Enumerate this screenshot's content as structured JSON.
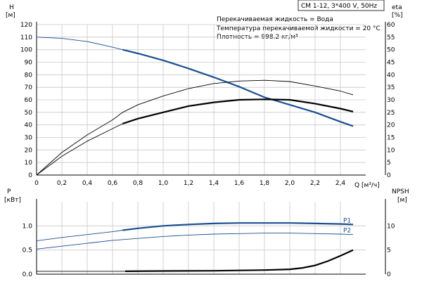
{
  "chart_data": [
    {
      "type": "line",
      "title": "CM 1-12, 3*400 V, 50Hz",
      "annotations": [
        "Перекачиваемая жидкость = Вода",
        "Температура перекачиваемой жидкости = 20 °C",
        "Плотность = 998.2 кг/м³"
      ],
      "xlabel": "Q [м³/ч]",
      "xlim": [
        0,
        2.6
      ],
      "x_ticks": [
        "0",
        "0,2",
        "0,4",
        "0,6",
        "0,8",
        "1,0",
        "1,2",
        "1,4",
        "1,6",
        "1,8",
        "2,0",
        "2,2",
        "2,4"
      ],
      "ylabel_left": "H",
      "ylabel_left_unit": "[м]",
      "ylim_left": [
        0,
        120
      ],
      "y_ticks_left": [
        "0",
        "10",
        "20",
        "30",
        "40",
        "50",
        "60",
        "70",
        "80",
        "90",
        "100",
        "110",
        "120"
      ],
      "ylabel_right": "eta",
      "ylabel_right_unit": "[%]",
      "ylim_right": [
        0,
        60
      ],
      "y_ticks_right": [
        "0",
        "5",
        "10",
        "15",
        "20",
        "25",
        "30",
        "35",
        "40",
        "45",
        "50",
        "55",
        "60"
      ],
      "grid": true,
      "series": [
        {
          "id": "head",
          "axis": "left",
          "color": "#1a4f8f",
          "x": [
            0,
            0.2,
            0.4,
            0.6,
            0.68,
            0.8,
            1.0,
            1.2,
            1.4,
            1.6,
            1.8,
            2.0,
            2.2,
            2.4,
            2.5
          ],
          "y": [
            110,
            109,
            106.5,
            102,
            100,
            97,
            91.5,
            85,
            78,
            70.5,
            62,
            56,
            50,
            42.5,
            39
          ],
          "highlight_from": 0.68
        },
        {
          "id": "efficiency_thin",
          "axis": "right",
          "color": "#000000",
          "x": [
            0,
            0.2,
            0.4,
            0.6,
            0.68,
            0.8,
            1.0,
            1.2,
            1.4,
            1.6,
            1.8,
            2.0,
            2.2,
            2.4,
            2.5
          ],
          "y": [
            0,
            9,
            16,
            22,
            25,
            28,
            31.5,
            34.5,
            36.5,
            37.5,
            37.8,
            37.3,
            35.5,
            33.5,
            32
          ]
        },
        {
          "id": "efficiency_thick",
          "axis": "right",
          "color": "#000000",
          "x": [
            0,
            0.2,
            0.4,
            0.6,
            0.68,
            0.8,
            1.0,
            1.2,
            1.4,
            1.6,
            1.8,
            2.0,
            2.2,
            2.4,
            2.5
          ],
          "y": [
            0,
            7.5,
            13.5,
            18.5,
            20.5,
            22.5,
            25,
            27.5,
            29,
            30,
            30.2,
            30,
            28.5,
            26.5,
            25.3
          ],
          "highlight_from": 0.68
        }
      ]
    },
    {
      "type": "line",
      "xlim": [
        0,
        2.6
      ],
      "ylabel_left": "P",
      "ylabel_left_unit": "[кВт]",
      "ylim_left": [
        0,
        1.5
      ],
      "y_ticks_left": [
        "0.0",
        "0.5",
        "1.0"
      ],
      "ylabel_right": "NPSH",
      "ylabel_right_unit": "[м]",
      "ylim_right": [
        0,
        15
      ],
      "y_ticks_right": [
        "0",
        "5",
        "10"
      ],
      "grid": true,
      "series": [
        {
          "name": "P1",
          "axis": "left",
          "color": "#1a4f8f",
          "x": [
            0,
            0.2,
            0.4,
            0.6,
            0.68,
            0.8,
            1.0,
            1.2,
            1.4,
            1.6,
            1.8,
            2.0,
            2.2,
            2.4,
            2.5
          ],
          "y": [
            0.69,
            0.76,
            0.82,
            0.88,
            0.91,
            0.95,
            1.0,
            1.03,
            1.05,
            1.06,
            1.06,
            1.06,
            1.05,
            1.04,
            1.03
          ],
          "highlight_from": 0.68
        },
        {
          "name": "P2",
          "axis": "left",
          "color": "#1a4f8f",
          "x": [
            0,
            0.2,
            0.4,
            0.6,
            0.8,
            1.0,
            1.2,
            1.4,
            1.6,
            1.8,
            2.0,
            2.2,
            2.4,
            2.5
          ],
          "y": [
            0.52,
            0.58,
            0.64,
            0.7,
            0.74,
            0.78,
            0.81,
            0.83,
            0.84,
            0.85,
            0.85,
            0.84,
            0.83,
            0.82
          ]
        },
        {
          "id": "npsh",
          "axis": "right",
          "color": "#000000",
          "x": [
            0,
            0.4,
            0.7,
            1.0,
            1.4,
            1.8,
            2.0,
            2.1,
            2.2,
            2.3,
            2.4,
            2.5
          ],
          "y": [
            0.6,
            0.6,
            0.6,
            0.65,
            0.7,
            0.85,
            1.0,
            1.3,
            1.8,
            2.7,
            3.8,
            5.0
          ],
          "highlight_from": 0.68
        }
      ]
    }
  ]
}
